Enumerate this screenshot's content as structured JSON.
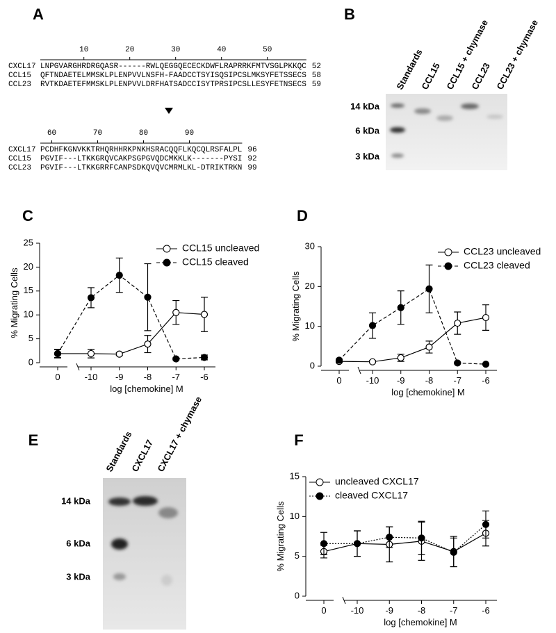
{
  "panel_labels": [
    "A",
    "B",
    "C",
    "D",
    "E",
    "F"
  ],
  "alignment": {
    "blocks": [
      {
        "ruler": [
          10,
          20,
          30,
          40,
          50
        ],
        "rows": [
          {
            "name": "CXCL17",
            "seq": "LNPGVARGHRDRGQASR------RWLQEGGQECECKDWFLRAPRRKFMTVSGLPKKQC",
            "end": 52
          },
          {
            "name": "CCL15",
            "seq": "QFTNDAETELMMSKLPLENPVVLNSFH-FAADCCTSYISQSIPCSLMKSYFETSSECS",
            "end": 58
          },
          {
            "name": "CCL23",
            "seq": "RVTKDAETEFMMSKLPLENPVVLDRFHATSADCCISYTPRSIPCSLLESYFETNSECS",
            "end": 59
          }
        ]
      },
      {
        "ruler": [
          60,
          70,
          80,
          90
        ],
        "rows": [
          {
            "name": "CXCL17",
            "seq": "PCDHFKGNVKKTRHQRHHRKPNKHSRACQQFLKQCQLRSFALPL",
            "end": 96
          },
          {
            "name": "CCL15",
            "seq": "PGVIF---LTKKGRQVCAKPSGPGVQDCMKKLK-------PYSI",
            "end": 92
          },
          {
            "name": "CCL23",
            "seq": "PGVIF---LTKKGRRFCANPSDKQVQVCMRMLKL-DTRIKTRKN",
            "end": 99
          }
        ]
      }
    ]
  },
  "gel_b": {
    "lanes": [
      "Standards",
      "CCL15",
      "CCL15 + chymase",
      "CCL23",
      "CCL23 + chymase"
    ],
    "markers": [
      "14 kDa",
      "6 kDa",
      "3 kDa"
    ]
  },
  "gel_e": {
    "lanes": [
      "Standards",
      "CXCL17",
      "CXCL17 + chymase"
    ],
    "markers": [
      "14 kDa",
      "6 kDa",
      "3 kDa"
    ]
  },
  "chart_data": [
    {
      "type": "line",
      "y_label": "% Migrating Cells",
      "x_label": "log [chemokine] M",
      "categories": [
        "0",
        "-10",
        "-9",
        "-8",
        "-7",
        "-6"
      ],
      "ylim": [
        0,
        25
      ],
      "yticks": [
        0,
        5,
        10,
        15,
        20,
        25
      ],
      "legend": "upper right",
      "series": [
        {
          "name": "CCL15 uncleaved",
          "color": "#000000",
          "marker": "open",
          "dash": "solid",
          "values": [
            1.9,
            1.9,
            1.8,
            3.9,
            10.5,
            10.1
          ],
          "errors": [
            0.8,
            0.9,
            0.3,
            1.8,
            2.5,
            3.6
          ]
        },
        {
          "name": "CCL15 cleaved",
          "color": "#000000",
          "marker": "filled",
          "dash": "dashed",
          "values": [
            1.9,
            13.6,
            18.3,
            13.7,
            0.8,
            1.1
          ],
          "errors": [
            0.9,
            2.1,
            3.6,
            7,
            0.2,
            0.5
          ]
        }
      ]
    },
    {
      "type": "line",
      "y_label": "% Migrating Cells",
      "x_label": "log [chemokine] M",
      "categories": [
        "0",
        "-10",
        "-9",
        "-8",
        "-7",
        "-6"
      ],
      "ylim": [
        0,
        30
      ],
      "yticks": [
        0,
        10,
        20,
        30
      ],
      "legend": "upper right",
      "series": [
        {
          "name": "CCL23 uncleaved",
          "color": "#000000",
          "marker": "open",
          "dash": "solid",
          "values": [
            1.2,
            1.1,
            2.1,
            4.8,
            10.8,
            12.2
          ],
          "errors": [
            0.3,
            0.3,
            0.9,
            1.5,
            2.8,
            3.2
          ]
        },
        {
          "name": "CCL23 cleaved",
          "color": "#000000",
          "marker": "filled",
          "dash": "dashed",
          "values": [
            1.5,
            10.2,
            14.7,
            19.4,
            0.8,
            0.5
          ],
          "errors": [
            0.3,
            3.2,
            4.2,
            6,
            0.2,
            0.2
          ]
        }
      ]
    },
    {
      "type": "line",
      "y_label": "% Migrating Cells",
      "x_label": "log [chemokine] M",
      "categories": [
        "0",
        "-10",
        "-9",
        "-8",
        "-7",
        "-6"
      ],
      "ylim": [
        0,
        15
      ],
      "yticks": [
        0,
        5,
        10,
        15
      ],
      "legend": "upper left",
      "series": [
        {
          "name": "uncleaved CXCL17",
          "color": "#000000",
          "marker": "open",
          "dash": "solid",
          "values": [
            5.6,
            6.6,
            6.5,
            6.9,
            5.6,
            7.9
          ],
          "errors": [
            0.8,
            1.6,
            2.2,
            2.4,
            1.9,
            1.6
          ]
        },
        {
          "name": "cleaved CXCL17",
          "color": "#000000",
          "marker": "filled",
          "dash": "dotted",
          "values": [
            6.6,
            6.6,
            7.4,
            7.3,
            5.5,
            9
          ],
          "errors": [
            1.4,
            1.6,
            1.3,
            2.1,
            1.8,
            1.7
          ]
        }
      ]
    }
  ]
}
